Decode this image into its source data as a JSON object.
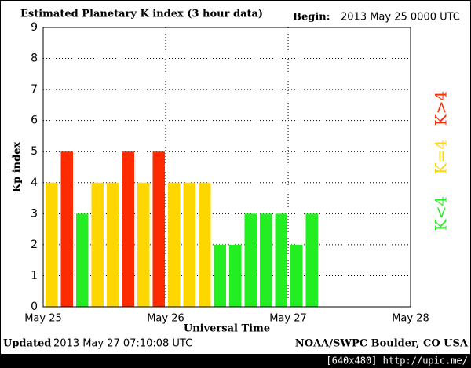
{
  "chart_data": {
    "type": "bar",
    "title": "Estimated Planetary K index (3 hour data)",
    "begin_label": "Begin:",
    "begin": "2013 May 25 0000 UTC",
    "ylabel": "Kp index",
    "xlabel": "Universal Time",
    "updated_label": "Updated",
    "updated": "2013 May 27 07:10:08 UTC",
    "credit": "NOAA/SWPC Boulder, CO USA",
    "watermark": "[640x480] http://upic.me/",
    "x": [
      0,
      3,
      6,
      9,
      12,
      15,
      18,
      21,
      24,
      27,
      30,
      33,
      36,
      39,
      42,
      45,
      48,
      51
    ],
    "values": [
      4,
      5,
      3,
      4,
      4,
      5,
      4,
      5,
      4,
      4,
      4,
      2,
      2,
      3,
      3,
      3,
      2,
      3
    ],
    "colors": [
      "#ffd700",
      "#ff2a00",
      "#22ee22",
      "#ffd700",
      "#ffd700",
      "#ff2a00",
      "#ffd700",
      "#ff2a00",
      "#ffd700",
      "#ffd700",
      "#ffd700",
      "#22ee22",
      "#22ee22",
      "#22ee22",
      "#22ee22",
      "#22ee22",
      "#22ee22",
      "#22ee22"
    ],
    "legend": [
      {
        "label": "K<4",
        "color": "#22ee22"
      },
      {
        "label": "K=4",
        "color": "#ffd700"
      },
      {
        "label": "K>4",
        "color": "#ff2a00"
      }
    ],
    "xlim": [
      0,
      72
    ],
    "xticks": [
      {
        "value": 0,
        "label": "May 25"
      },
      {
        "value": 24,
        "label": "May 26"
      },
      {
        "value": 48,
        "label": "May 27"
      },
      {
        "value": 72,
        "label": "May 28"
      }
    ],
    "ylim": [
      0,
      9
    ],
    "yticks": [
      0,
      1,
      2,
      3,
      4,
      5,
      6,
      7,
      8,
      9
    ],
    "grid": true
  }
}
